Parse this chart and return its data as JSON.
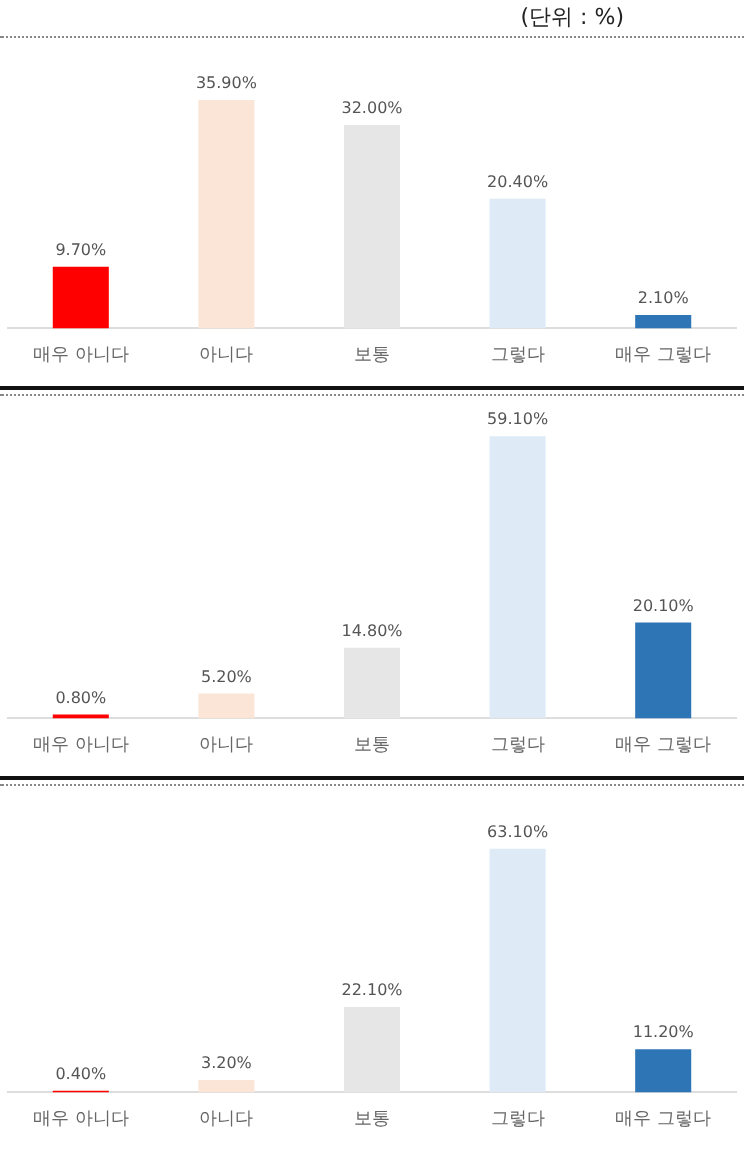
{
  "chart_data": [
    {
      "type": "bar",
      "annotations": [
        "(단위 : %)"
      ],
      "categories": [
        "매우 아니다",
        "아니다",
        "보통",
        "그렇다",
        "매우 그렇다"
      ],
      "values": [
        9.7,
        35.9,
        32.0,
        20.4,
        2.1
      ],
      "colors": [
        "#ff0000",
        "#fbe5d6",
        "#e7e6e6",
        "#deebf7",
        "#2e75b6"
      ],
      "value_labels": [
        "9.70%",
        "35.90%",
        "32.00%",
        "20.40%",
        "2.10%"
      ]
    },
    {
      "type": "bar",
      "categories": [
        "매우 아니다",
        "아니다",
        "보통",
        "그렇다",
        "매우 그렇다"
      ],
      "values": [
        0.8,
        5.2,
        14.8,
        59.1,
        20.1
      ],
      "colors": [
        "#ff0000",
        "#fbe5d6",
        "#e7e6e6",
        "#deebf7",
        "#2e75b6"
      ],
      "value_labels": [
        "0.80%",
        "5.20%",
        "14.80%",
        "59.10%",
        "20.10%"
      ]
    },
    {
      "type": "bar",
      "categories": [
        "매우 아니다",
        "아니다",
        "보통",
        "그렇다",
        "매우 그렇다"
      ],
      "values": [
        0.4,
        3.2,
        22.1,
        63.1,
        11.2
      ],
      "colors": [
        "#ff0000",
        "#fbe5d6",
        "#e7e6e6",
        "#deebf7",
        "#2e75b6"
      ],
      "value_labels": [
        "0.40%",
        "3.20%",
        "22.10%",
        "63.10%",
        "11.20%"
      ]
    }
  ]
}
